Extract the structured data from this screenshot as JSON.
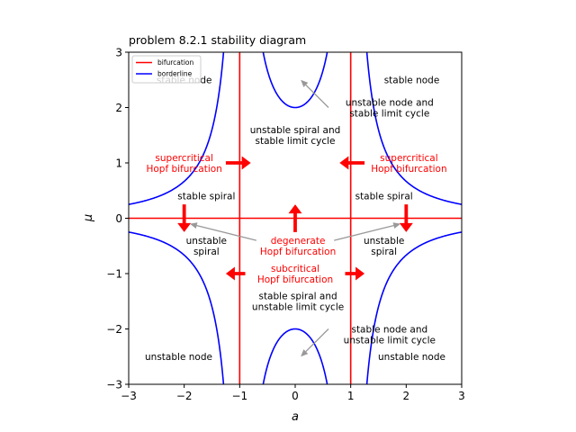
{
  "chart_data": {
    "type": "line",
    "title": "problem 8.2.1 stability diagram",
    "xlabel": "a",
    "ylabel": "μ",
    "xlim": [
      -3,
      3
    ],
    "ylim": [
      -3,
      3
    ],
    "grid": false,
    "x_ticks": [
      -3,
      -2,
      -1,
      0,
      1,
      2,
      3
    ],
    "x_tick_labels": [
      "−3",
      "−2",
      "−1",
      "0",
      "1",
      "2",
      "3"
    ],
    "y_ticks": [
      -3,
      -2,
      -1,
      0,
      1,
      2,
      3
    ],
    "y_tick_labels": [
      "−3",
      "−2",
      "−1",
      "0",
      "1",
      "2",
      "3"
    ],
    "legend": {
      "position": "top-left",
      "entries": [
        {
          "label": "bifurcation",
          "color": "#ff0000"
        },
        {
          "label": "borderline",
          "color": "#0000ff"
        }
      ]
    },
    "series": [
      {
        "name": "bifurcation",
        "color": "#ff0000",
        "kind": "lines",
        "segments": [
          {
            "x": [
              -3,
              3
            ],
            "y": [
              0,
              0
            ]
          },
          {
            "x": [
              -1,
              -1
            ],
            "y": [
              -3,
              3
            ]
          },
          {
            "x": [
              1,
              1
            ],
            "y": [
              -3,
              3
            ]
          }
        ]
      },
      {
        "name": "borderline",
        "color": "#0000ff",
        "kind": "curve",
        "formula": "mu = ±2/|1 - a^2|"
      }
    ],
    "region_labels": [
      {
        "text": "stable node",
        "x": -2.0,
        "y": 2.5,
        "color": "#000000"
      },
      {
        "text": "stable node",
        "x": 2.1,
        "y": 2.5,
        "color": "#000000"
      },
      {
        "text": "unstable spiral and\nstable limit cycle",
        "x": 0.0,
        "y": 1.5,
        "color": "#000000"
      },
      {
        "text": "supercritical\nHopf bifurcation",
        "x": -2.0,
        "y": 1.0,
        "color": "#ff0000"
      },
      {
        "text": "supercritical\nHopf bifurcation",
        "x": 2.05,
        "y": 1.0,
        "color": "#ff0000"
      },
      {
        "text": "stable spiral",
        "x": -1.6,
        "y": 0.4,
        "color": "#000000"
      },
      {
        "text": "stable spiral",
        "x": 1.6,
        "y": 0.4,
        "color": "#000000"
      },
      {
        "text": "unstable\nspiral",
        "x": -1.6,
        "y": -0.5,
        "color": "#000000"
      },
      {
        "text": "unstable\nspiral",
        "x": 1.6,
        "y": -0.5,
        "color": "#000000"
      },
      {
        "text": "subcritical\nHopf bifurcation",
        "x": 0.0,
        "y": -1.0,
        "color": "#ff0000"
      },
      {
        "text": "stable spiral and\nunstable limit cycle",
        "x": 0.05,
        "y": -1.5,
        "color": "#000000"
      },
      {
        "text": "unstable node",
        "x": -2.1,
        "y": -2.5,
        "color": "#000000"
      },
      {
        "text": "unstable node",
        "x": 2.1,
        "y": -2.5,
        "color": "#000000"
      }
    ],
    "annotations": [
      {
        "text": "unstable node and\nstable limit cycle",
        "x": 1.7,
        "y": 2.0,
        "arrow_to": [
          0.1,
          2.5
        ],
        "color": "#000000"
      },
      {
        "text": "degenerate\nHopf bifurcation",
        "x": 0.05,
        "y": -0.5,
        "arrow_to": [
          [
            -1.9,
            -0.1
          ],
          [
            1.9,
            -0.1
          ]
        ],
        "color": "#ff0000"
      },
      {
        "text": "stable node and\nunstable limit cycle",
        "x": 1.7,
        "y": -2.1,
        "arrow_to": [
          0.1,
          -2.5
        ],
        "color": "#000000"
      }
    ],
    "direction_arrows": [
      {
        "from": [
          -1.25,
          1.0
        ],
        "to": [
          -0.8,
          1.0
        ]
      },
      {
        "from": [
          1.25,
          1.0
        ],
        "to": [
          0.8,
          1.0
        ]
      },
      {
        "from": [
          -2.0,
          0.25
        ],
        "to": [
          -2.0,
          -0.25
        ]
      },
      {
        "from": [
          2.0,
          0.25
        ],
        "to": [
          2.0,
          -0.25
        ]
      },
      {
        "from": [
          0.0,
          -0.25
        ],
        "to": [
          0.0,
          0.25
        ]
      },
      {
        "from": [
          -0.9,
          -1.0
        ],
        "to": [
          -1.25,
          -1.0
        ]
      },
      {
        "from": [
          0.9,
          -1.0
        ],
        "to": [
          1.25,
          -1.0
        ]
      }
    ]
  }
}
